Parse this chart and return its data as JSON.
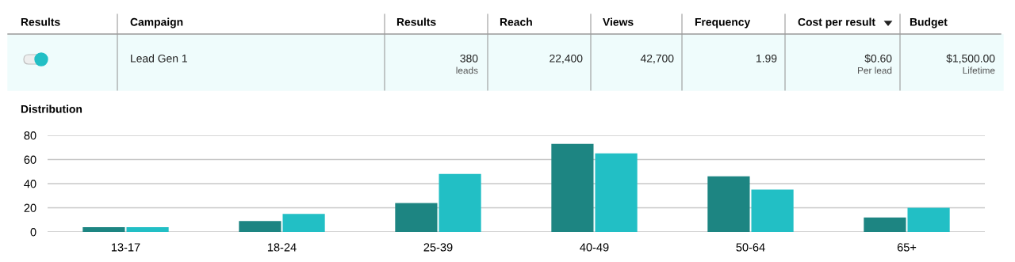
{
  "chart_data": [
    {
      "type": "other",
      "categories": [
        "Results",
        "Campaign",
        "Results",
        "Reach",
        "Views",
        "Frequency",
        "Cost per result",
        "Budget"
      ],
      "annotations": [
        "Lead Gen 1",
        "380",
        "leads",
        "22,400",
        "42,700",
        "1.99",
        "$0.60",
        "Per lead",
        "$1,500.00",
        "Lifetime"
      ]
    },
    {
      "type": "bar",
      "title": "Distribution",
      "categories": [
        "13-17",
        "18-24",
        "25-39",
        "40-49",
        "50-64",
        "65+"
      ],
      "series": [
        {
          "color": "#1d8582",
          "values": [
            4,
            9,
            24,
            73,
            46,
            12
          ]
        },
        {
          "color": "#22bfc5",
          "values": [
            4,
            15,
            48,
            65,
            35,
            20
          ]
        }
      ],
      "ylim": [
        0,
        80
      ],
      "yticks": [
        0,
        20,
        40,
        60,
        80
      ],
      "grid": "y"
    }
  ]
}
